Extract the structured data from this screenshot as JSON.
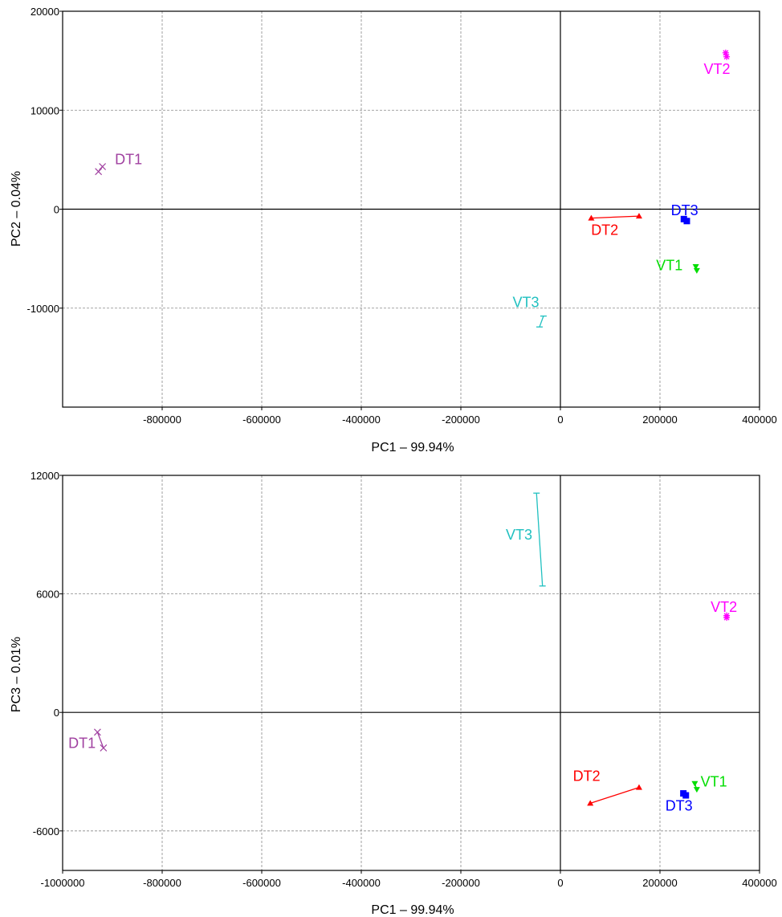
{
  "chart_data": [
    {
      "type": "scatter",
      "xlabel": "PC1 – 99.94%",
      "ylabel": "PC2 – 0.04%",
      "xlim": [
        -1000000,
        400000
      ],
      "ylim": [
        -20000,
        20000
      ],
      "xticks": [
        -800000,
        -600000,
        -400000,
        -200000,
        0,
        200000,
        400000
      ],
      "yticks": [
        -10000,
        0,
        10000,
        20000
      ],
      "grid": true,
      "groups": [
        {
          "name": "DT1",
          "color": "#a040a0",
          "marker": "x",
          "points": [
            [
              -928000,
              3800
            ],
            [
              -920000,
              4300
            ]
          ]
        },
        {
          "name": "DT2",
          "color": "#ff0000",
          "marker": "triangle-up",
          "points": [
            [
              62000,
              -900
            ],
            [
              158000,
              -700
            ]
          ]
        },
        {
          "name": "DT3",
          "color": "#0000ff",
          "marker": "square",
          "points": [
            [
              248000,
              -1000
            ],
            [
              254000,
              -1200
            ]
          ]
        },
        {
          "name": "VT1",
          "color": "#00dd00",
          "marker": "triangle-down",
          "points": [
            [
              272000,
              -5800
            ],
            [
              274000,
              -6200
            ]
          ]
        },
        {
          "name": "VT2",
          "color": "#ff00ff",
          "marker": "star",
          "points": [
            [
              332000,
              15800
            ],
            [
              334000,
              15400
            ]
          ]
        },
        {
          "name": "VT3",
          "color": "#20c0c0",
          "marker": "bar",
          "points": [
            [
              -34000,
              -10800
            ],
            [
              -42000,
              -11900
            ]
          ]
        }
      ]
    },
    {
      "type": "scatter",
      "xlabel": "PC1 – 99.94%",
      "ylabel": "PC3 – 0.01%",
      "xlim": [
        -1000000,
        400000
      ],
      "ylim": [
        -8000,
        12000
      ],
      "xticks": [
        -1000000,
        -800000,
        -600000,
        -400000,
        -200000,
        0,
        200000,
        400000
      ],
      "yticks": [
        -6000,
        0,
        6000,
        12000
      ],
      "grid": true,
      "groups": [
        {
          "name": "DT1",
          "color": "#a040a0",
          "marker": "x",
          "points": [
            [
              -930000,
              -1000
            ],
            [
              -918000,
              -1800
            ]
          ]
        },
        {
          "name": "DT2",
          "color": "#ff0000",
          "marker": "triangle-up",
          "points": [
            [
              60000,
              -4600
            ],
            [
              158000,
              -3800
            ]
          ]
        },
        {
          "name": "DT3",
          "color": "#0000ff",
          "marker": "square",
          "points": [
            [
              247000,
              -4100
            ],
            [
              252000,
              -4200
            ]
          ]
        },
        {
          "name": "VT1",
          "color": "#00dd00",
          "marker": "triangle-down",
          "points": [
            [
              270000,
              -3600
            ],
            [
              274000,
              -3900
            ]
          ]
        },
        {
          "name": "VT2",
          "color": "#ff00ff",
          "marker": "star",
          "points": [
            [
              334000,
              4900
            ],
            [
              334000,
              4800
            ]
          ]
        },
        {
          "name": "VT3",
          "color": "#20c0c0",
          "marker": "bar",
          "points": [
            [
              -48000,
              11100
            ],
            [
              -36000,
              6400
            ]
          ]
        }
      ]
    }
  ]
}
